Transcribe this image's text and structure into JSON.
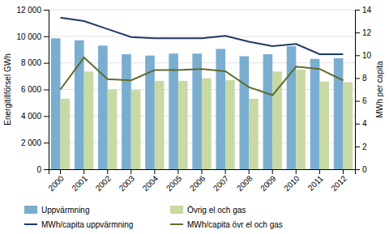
{
  "chart_data": {
    "type": "bar",
    "categories": [
      "2000",
      "2001",
      "2002",
      "2003",
      "2004",
      "2005",
      "2006",
      "2007",
      "2008",
      "2009",
      "2010",
      "2011",
      "2012"
    ],
    "series": [
      {
        "name": "Uppvärmning",
        "type": "bar",
        "color": "#7aaed0",
        "values": [
          9850,
          9700,
          9300,
          8650,
          8550,
          8700,
          8700,
          9050,
          8500,
          8650,
          9250,
          8300,
          8350
        ]
      },
      {
        "name": "Övrig el och gas",
        "type": "bar",
        "color": "#c8d9a5",
        "values": [
          5300,
          7350,
          6000,
          5950,
          6650,
          6650,
          6850,
          6700,
          5300,
          7350,
          7500,
          6600,
          6550
        ]
      },
      {
        "name": "MWh/capita uppvärmning",
        "type": "line",
        "axis": "y2",
        "color": "#1f3864",
        "values": [
          13.3,
          13.0,
          12.3,
          11.6,
          11.5,
          11.5,
          11.5,
          11.7,
          11.2,
          10.8,
          11.0,
          10.1,
          10.1
        ]
      },
      {
        "name": "MWh/capita övr el och gas",
        "type": "line",
        "axis": "y2",
        "color": "#606b2c",
        "values": [
          7.0,
          9.8,
          7.9,
          7.8,
          8.7,
          8.7,
          8.8,
          8.6,
          7.2,
          6.5,
          9.0,
          8.8,
          7.8
        ]
      }
    ],
    "ylabel": "Energitillförsel GWh",
    "y2label": "MWh per capita",
    "ylim": [
      0,
      12000
    ],
    "yticks": [
      0,
      {
        "value": 2000,
        "label": "2 000"
      },
      {
        "value": 4000,
        "label": "4 000"
      },
      {
        "value": 6000,
        "label": "6 000"
      },
      {
        "value": 8000,
        "label": "8 000"
      },
      {
        "value": 10000,
        "label": "10 000"
      },
      {
        "value": 12000,
        "label": "12 000"
      }
    ],
    "y2lim": [
      0,
      14
    ],
    "y2ticks": [
      0,
      2,
      4,
      6,
      8,
      10,
      12,
      14
    ],
    "grid": true,
    "legend": "bottom"
  }
}
